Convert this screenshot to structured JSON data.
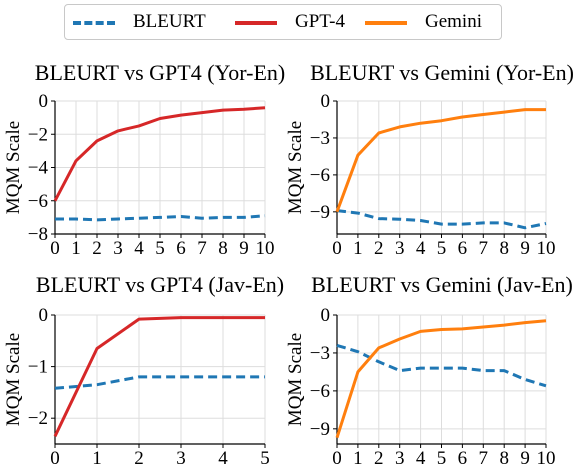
{
  "legend": {
    "items": [
      {
        "label": "BLEURT",
        "color": "#1f77b4",
        "dash": true
      },
      {
        "label": "GPT-4",
        "color": "#d62728",
        "dash": false
      },
      {
        "label": "Gemini",
        "color": "#ff7f0e",
        "dash": false
      }
    ]
  },
  "chart_data": [
    {
      "type": "line",
      "title": "BLEURT vs GPT4 (Yor-En)",
      "ylabel": "MQM Scale",
      "x": [
        0,
        1,
        2,
        3,
        4,
        5,
        6,
        7,
        8,
        9,
        10
      ],
      "xticks": [
        0,
        1,
        2,
        3,
        4,
        5,
        6,
        7,
        8,
        9,
        10
      ],
      "yticks": [
        0,
        -2,
        -4,
        -6,
        -8
      ],
      "xlim": [
        0,
        10
      ],
      "ylim": [
        -8,
        0
      ],
      "grid": true,
      "series": [
        {
          "name": "BLEURT",
          "color": "#1f77b4",
          "dash": true,
          "values": [
            -7.1,
            -7.1,
            -7.15,
            -7.1,
            -7.05,
            -7.0,
            -6.95,
            -7.05,
            -7.0,
            -7.0,
            -6.9
          ]
        },
        {
          "name": "GPT-4",
          "color": "#d62728",
          "dash": false,
          "values": [
            -6.0,
            -3.6,
            -2.4,
            -1.8,
            -1.5,
            -1.05,
            -0.85,
            -0.7,
            -0.55,
            -0.5,
            -0.4
          ]
        }
      ]
    },
    {
      "type": "line",
      "title": "BLEURT vs Gemini (Yor-En)",
      "ylabel": "MQM Scale",
      "x": [
        0,
        1,
        2,
        3,
        4,
        5,
        6,
        7,
        8,
        9,
        10
      ],
      "xticks": [
        0,
        1,
        2,
        3,
        4,
        5,
        6,
        7,
        8,
        9,
        10
      ],
      "yticks": [
        0,
        -3,
        -6,
        -9
      ],
      "xlim": [
        0,
        10
      ],
      "ylim": [
        -10.8,
        0
      ],
      "grid": true,
      "series": [
        {
          "name": "BLEURT",
          "color": "#1f77b4",
          "dash": true,
          "values": [
            -8.9,
            -9.1,
            -9.55,
            -9.6,
            -9.7,
            -10.0,
            -10.0,
            -9.9,
            -9.9,
            -10.3,
            -9.95
          ]
        },
        {
          "name": "Gemini",
          "color": "#ff7f0e",
          "dash": false,
          "values": [
            -9.0,
            -4.4,
            -2.6,
            -2.1,
            -1.8,
            -1.6,
            -1.3,
            -1.1,
            -0.9,
            -0.7,
            -0.7
          ]
        }
      ]
    },
    {
      "type": "line",
      "title": "BLEURT vs GPT4 (Jav-En)",
      "ylabel": "MQM Scale",
      "x": [
        0,
        1,
        2,
        3,
        4,
        5
      ],
      "xticks": [
        0,
        1,
        2,
        3,
        4,
        5
      ],
      "yticks": [
        0,
        -1,
        -2
      ],
      "xlim": [
        0,
        5
      ],
      "ylim": [
        -2.5,
        0
      ],
      "grid": true,
      "series": [
        {
          "name": "BLEURT",
          "color": "#1f77b4",
          "dash": true,
          "values": [
            -1.42,
            -1.35,
            -1.2,
            -1.2,
            -1.2,
            -1.2
          ]
        },
        {
          "name": "GPT-4",
          "color": "#d62728",
          "dash": false,
          "values": [
            -2.35,
            -0.65,
            -0.08,
            -0.05,
            -0.05,
            -0.05
          ]
        }
      ]
    },
    {
      "type": "line",
      "title": "BLEURT vs Gemini (Jav-En)",
      "ylabel": "MQM Scale",
      "x": [
        0,
        1,
        2,
        3,
        4,
        5,
        6,
        7,
        8,
        9,
        10
      ],
      "xticks": [
        0,
        1,
        2,
        3,
        4,
        5,
        6,
        7,
        8,
        9,
        10
      ],
      "yticks": [
        0,
        -3,
        -6,
        -9
      ],
      "xlim": [
        0,
        10
      ],
      "ylim": [
        -10.2,
        0
      ],
      "grid": true,
      "series": [
        {
          "name": "BLEURT",
          "color": "#1f77b4",
          "dash": true,
          "values": [
            -2.4,
            -2.9,
            -3.7,
            -4.4,
            -4.2,
            -4.2,
            -4.2,
            -4.4,
            -4.4,
            -5.1,
            -5.6
          ]
        },
        {
          "name": "Gemini",
          "color": "#ff7f0e",
          "dash": false,
          "values": [
            -9.7,
            -4.5,
            -2.6,
            -1.9,
            -1.3,
            -1.15,
            -1.1,
            -0.95,
            -0.8,
            -0.6,
            -0.45
          ]
        }
      ]
    }
  ]
}
